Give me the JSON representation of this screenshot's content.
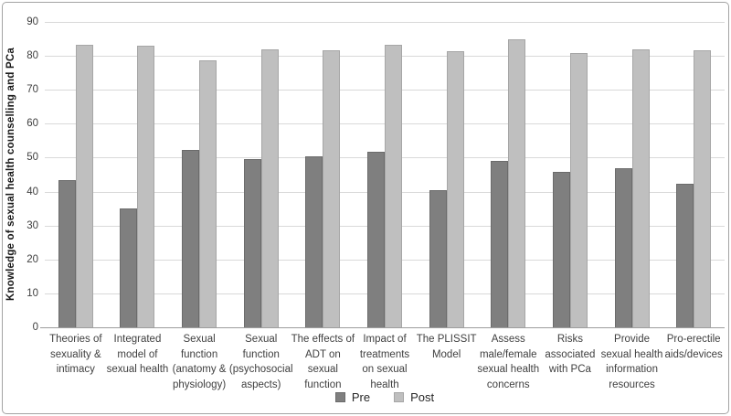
{
  "chart_data": {
    "type": "bar",
    "title": "",
    "xlabel": "",
    "ylabel": "Knowledge of sexual health counselling and PCa",
    "ylim": [
      0,
      90
    ],
    "yticks": [
      0,
      10,
      20,
      30,
      40,
      50,
      60,
      70,
      80,
      90
    ],
    "grid": true,
    "legend_position": "bottom",
    "background_color": "#ffffff",
    "gridline_color": "#d9d9d9",
    "categories": [
      "Theories of\nsexuality &\nintimacy",
      "Integrated\nmodel of\nsexual health",
      "Sexual\nfunction\n(anatomy &\nphysiology)",
      "Sexual\nfunction\n(psychosocial\naspects)",
      "The effects of\nADT on\nsexual\nfunction",
      "Impact of\ntreatments\non sexual\nhealth",
      "The PLISSIT\nModel",
      "Assess\nmale/female\nsexual health\nconcerns",
      "Risks\nassociated\nwith PCa",
      "Provide\nsexual health\ninformation\nresources",
      "Pro-erectile\naids/devices"
    ],
    "series": [
      {
        "name": "Pre",
        "color": "#7f7f7f",
        "border_color": "#6b6b6b",
        "values": [
          43.3,
          34.9,
          52.3,
          49.6,
          50.4,
          51.7,
          40.4,
          49.0,
          45.8,
          47.0,
          42.3
        ]
      },
      {
        "name": "Post",
        "color": "#bfbfbf",
        "border_color": "#a6a6a6",
        "values": [
          83.2,
          83.0,
          78.6,
          82.0,
          81.6,
          83.2,
          81.3,
          84.8,
          80.8,
          81.9,
          81.7
        ]
      }
    ]
  }
}
